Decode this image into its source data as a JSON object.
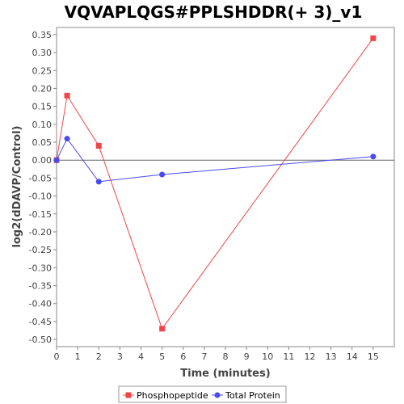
{
  "chart_data": {
    "type": "line",
    "title": "VQVAPLQGS#PPLSHDDR(+ 3)_v1",
    "xlabel": "Time (minutes)",
    "ylabel": "log2(dDAVP/Control)",
    "xlim": [
      0,
      16
    ],
    "ylim": [
      -0.52,
      0.37
    ],
    "x_ticks": [
      "0",
      "1",
      "2",
      "3",
      "4",
      "5",
      "6",
      "7",
      "8",
      "9",
      "10",
      "11",
      "12",
      "13",
      "14",
      "15"
    ],
    "y_ticks": [
      "0.35",
      "0.30",
      "0.25",
      "0.20",
      "0.15",
      "0.10",
      "0.05",
      "0.00",
      "-0.05",
      "-0.10",
      "-0.15",
      "-0.20",
      "-0.25",
      "-0.30",
      "-0.35",
      "-0.40",
      "-0.45",
      "-0.50"
    ],
    "grid": false,
    "legend_position": "bottom",
    "series": [
      {
        "name": "Phosphopeptide",
        "color": "#f0464a",
        "marker": "square",
        "x": [
          0,
          0.5,
          2,
          5,
          15
        ],
        "y": [
          0.0,
          0.18,
          0.04,
          -0.47,
          0.34
        ]
      },
      {
        "name": "Total Protein",
        "color": "#4a4af0",
        "marker": "circle",
        "x": [
          0,
          0.5,
          2,
          5,
          15
        ],
        "y": [
          0.0,
          0.06,
          -0.06,
          -0.04,
          0.01
        ]
      }
    ]
  }
}
